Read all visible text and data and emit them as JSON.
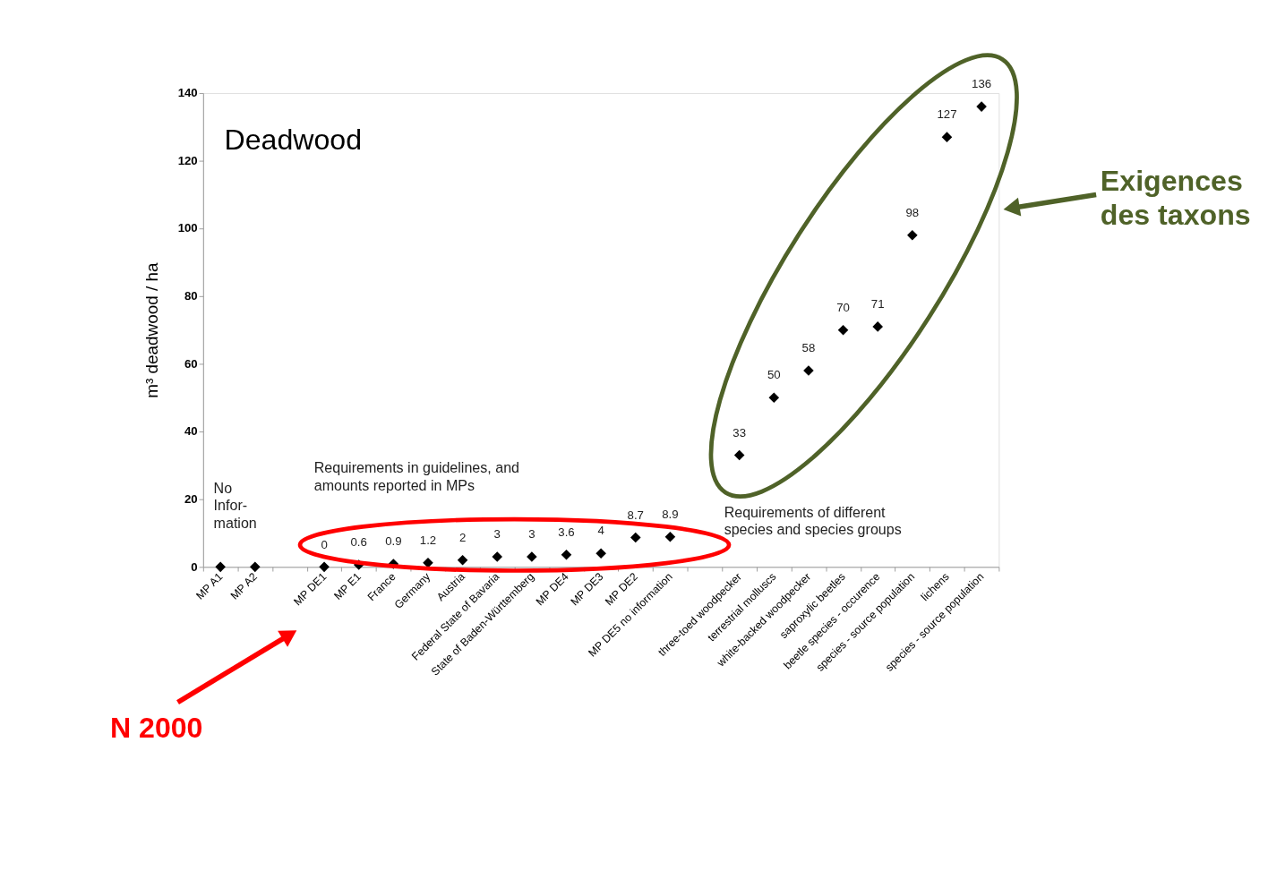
{
  "chart_data": {
    "type": "scatter",
    "ylabel": "m³ deadwood / ha",
    "categories": [
      "MP A1",
      "MP A2",
      null,
      "MP DE1",
      "MP E1",
      "France",
      "Germany",
      "Austria",
      "Federal State of Bavaria",
      "State of Baden-Württemberg",
      "MP DE4",
      "MP DE3",
      "MP DE2",
      "MP DE5 no information",
      null,
      "three-toed woodpecker",
      "terrestrial molluscs",
      "white-backed woodpecker",
      "saproxylic beetles",
      "beetle species - occurence",
      "species - source population",
      "lichens",
      "species - source population"
    ],
    "series": [
      {
        "color": "#000000",
        "values": [
          0,
          0,
          null,
          0,
          0.6,
          0.9,
          1.2,
          2,
          3,
          3,
          3.6,
          4,
          8.7,
          8.9,
          null,
          33,
          50,
          58,
          70,
          71,
          98,
          127,
          136
        ],
        "value_labels": [
          null,
          null,
          null,
          "0",
          "0.6",
          "0.9",
          "1.2",
          "2",
          "3",
          "3",
          "3.6",
          "4",
          "8.7",
          "8.9",
          null,
          "33",
          "50",
          "58",
          "70",
          "71",
          "98",
          "127",
          "136"
        ]
      }
    ],
    "ylim": [
      0,
      140
    ],
    "yticks": [
      0,
      20,
      40,
      60,
      80,
      100,
      120,
      140
    ],
    "marker": "diamond",
    "grid": false,
    "annotations": [
      "Deadwood",
      "No\nInfor-\nmation",
      "Requirements in guidelines, and\namounts reported in MPs",
      "Requirements of different\nspecies and species groups",
      "N 2000",
      "Exigences\ndes taxons"
    ]
  }
}
